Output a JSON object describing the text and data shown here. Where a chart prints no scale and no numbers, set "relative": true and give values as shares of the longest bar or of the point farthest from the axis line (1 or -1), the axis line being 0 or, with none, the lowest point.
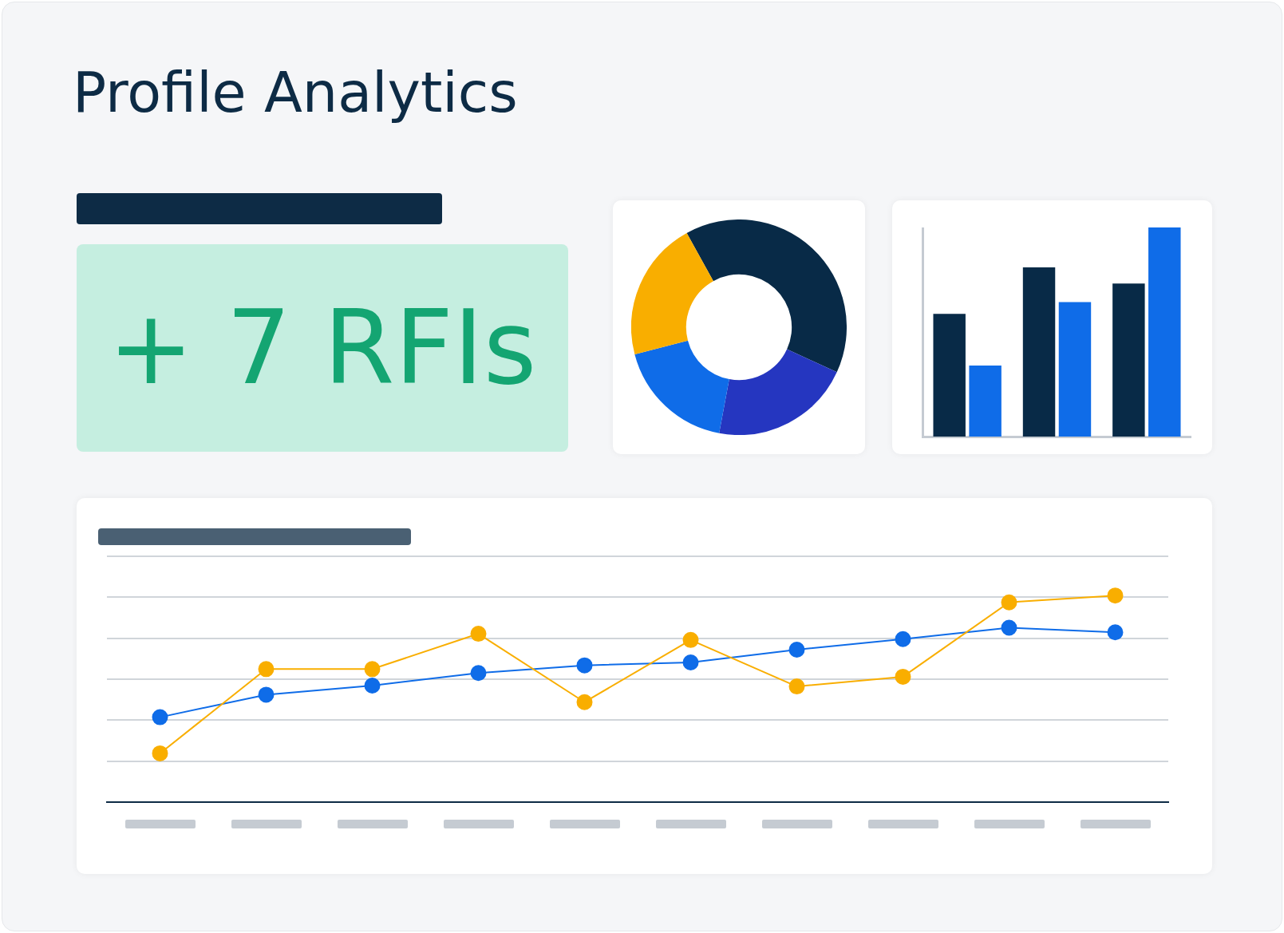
{
  "chart_data": [
    {
      "type": "other",
      "title": "Profile Analytics"
    },
    {
      "type": "other",
      "annotations": [
        "+ 7 RFIs"
      ]
    },
    {
      "type": "donut",
      "categories": [
        null,
        null,
        null,
        null
      ],
      "values": [
        39.9,
        21.1,
        18.0,
        21.0
      ],
      "colors": [
        "#082a47",
        "#2536c0",
        "#0f6ce8",
        "#f9ae00"
      ]
    },
    {
      "type": "bar",
      "relative": true,
      "categories": [
        null,
        null,
        null
      ],
      "series": [
        {
          "color": "#082a47",
          "values": [
            0.587,
            0.809,
            0.732
          ]
        },
        {
          "color": "#0f6ce8",
          "values": [
            0.34,
            0.643,
            1
          ]
        }
      ]
    },
    {
      "type": "line",
      "relative": true,
      "grid": "y",
      "marker": "circle",
      "categories": [
        null,
        null,
        null,
        null,
        null,
        null,
        null,
        null,
        null,
        null
      ],
      "series": [
        {
          "color": "#0f6ce8",
          "values": [
            0.411,
            0.52,
            0.564,
            0.625,
            0.662,
            0.676,
            0.738,
            0.789,
            0.844,
            0.822
          ]
        },
        {
          "color": "#f9ae00",
          "values": [
            0.236,
            0.644,
            0.644,
            0.815,
            0.484,
            0.785,
            0.56,
            0.607,
            0.967,
            1
          ]
        }
      ]
    }
  ]
}
